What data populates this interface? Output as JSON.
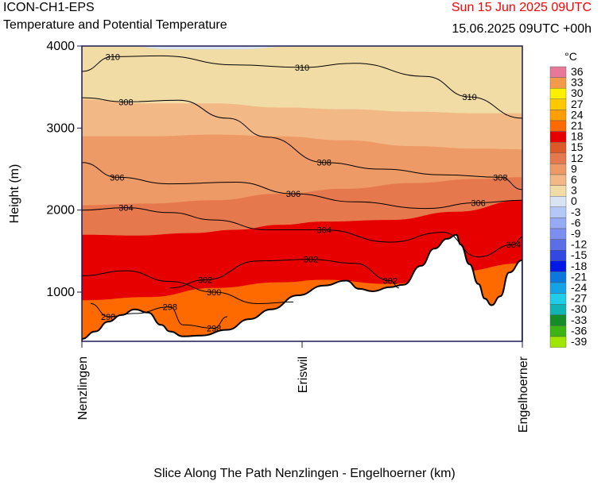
{
  "header": {
    "model": "ICON-CH1-EPS",
    "title": "Temperature and Potential Temperature",
    "valid_time": "Sun 15 Jun 2025 09UTC",
    "run_info": "15.06.2025 09UTC +00h"
  },
  "chart_data": {
    "type": "vertical cross-section (filled contour)",
    "xlabel": "Slice Along The Path Nenzlingen - Engelhoerner (km)",
    "ylabel": "Height (m)",
    "ylim": [
      400,
      4000
    ],
    "y_ticks": [
      1000,
      2000,
      3000,
      4000
    ],
    "x_locations": [
      {
        "name": "Nenzlingen",
        "fraction": 0.0
      },
      {
        "name": "Eriswil",
        "fraction": 0.5
      },
      {
        "name": "Engelhoerner",
        "fraction": 1.0
      }
    ],
    "colorbar": {
      "unit": "°C",
      "levels": [
        36,
        33,
        30,
        27,
        24,
        21,
        18,
        15,
        12,
        9,
        6,
        3,
        0,
        -3,
        -6,
        -9,
        -12,
        -15,
        -18,
        -21,
        -24,
        -27,
        -30,
        -33,
        -36,
        -39
      ],
      "colors": [
        "#e8789a",
        "#f39a4a",
        "#fff000",
        "#ffc800",
        "#ff9e00",
        "#ff6a00",
        "#e60000",
        "#dc5a28",
        "#e6784e",
        "#ee9a66",
        "#f2b886",
        "#f0dca4",
        "#d8e4f2",
        "#b4c8f8",
        "#96aaf6",
        "#7c8ef0",
        "#5c6ee6",
        "#3248e0",
        "#0018e6",
        "#0a78dc",
        "#14a4e6",
        "#20cce8",
        "#10b4b4",
        "#148c28",
        "#3cb414",
        "#a0e600"
      ]
    },
    "terrain_profile": [
      [
        0.0,
        430
      ],
      [
        0.03,
        520
      ],
      [
        0.06,
        640
      ],
      [
        0.09,
        720
      ],
      [
        0.12,
        790
      ],
      [
        0.15,
        750
      ],
      [
        0.18,
        600
      ],
      [
        0.2,
        520
      ],
      [
        0.23,
        460
      ],
      [
        0.27,
        470
      ],
      [
        0.33,
        540
      ],
      [
        0.38,
        670
      ],
      [
        0.43,
        790
      ],
      [
        0.49,
        960
      ],
      [
        0.55,
        1080
      ],
      [
        0.6,
        1140
      ],
      [
        0.63,
        1040
      ],
      [
        0.66,
        1010
      ],
      [
        0.7,
        1060
      ],
      [
        0.73,
        1090
      ],
      [
        0.77,
        1320
      ],
      [
        0.8,
        1530
      ],
      [
        0.83,
        1650
      ],
      [
        0.85,
        1700
      ],
      [
        0.86,
        1580
      ],
      [
        0.88,
        1340
      ],
      [
        0.9,
        1100
      ],
      [
        0.915,
        920
      ],
      [
        0.93,
        840
      ],
      [
        0.95,
        950
      ],
      [
        0.97,
        1240
      ],
      [
        1.0,
        1390
      ]
    ],
    "potential_temperature_contours": [
      {
        "label": "298",
        "points": [
          [
            0.02,
            860
          ],
          [
            0.06,
            700
          ],
          [
            0.12,
            740
          ],
          [
            0.2,
            820
          ],
          [
            0.23,
            600
          ],
          [
            0.3,
            560
          ],
          [
            0.33,
            700
          ]
        ]
      },
      {
        "label": "300",
        "points": [
          [
            0.0,
            1200
          ],
          [
            0.1,
            1260
          ],
          [
            0.2,
            1130
          ],
          [
            0.3,
            1000
          ],
          [
            0.4,
            860
          ],
          [
            0.48,
            880
          ]
        ]
      },
      {
        "label": "302",
        "points": [
          [
            0.2,
            1050
          ],
          [
            0.28,
            1150
          ],
          [
            0.4,
            1380
          ],
          [
            0.52,
            1400
          ],
          [
            0.62,
            1350
          ],
          [
            0.7,
            1140
          ],
          [
            0.72,
            1050
          ]
        ]
      },
      {
        "label": "304",
        "points": [
          [
            0.0,
            2000
          ],
          [
            0.1,
            2030
          ],
          [
            0.2,
            1970
          ],
          [
            0.3,
            1880
          ],
          [
            0.42,
            1760
          ],
          [
            0.55,
            1760
          ],
          [
            0.7,
            1610
          ],
          [
            0.82,
            1730
          ],
          [
            0.9,
            1430
          ],
          [
            0.98,
            1580
          ],
          [
            1.0,
            1670
          ]
        ]
      },
      {
        "label": "306",
        "points": [
          [
            0.0,
            2580
          ],
          [
            0.08,
            2400
          ],
          [
            0.2,
            2320
          ],
          [
            0.35,
            2340
          ],
          [
            0.48,
            2200
          ],
          [
            0.62,
            2100
          ],
          [
            0.78,
            2020
          ],
          [
            0.9,
            2090
          ],
          [
            1.0,
            2120
          ]
        ]
      },
      {
        "label": "308",
        "points": [
          [
            0.0,
            3370
          ],
          [
            0.1,
            3320
          ],
          [
            0.22,
            3340
          ],
          [
            0.33,
            3120
          ],
          [
            0.42,
            2890
          ],
          [
            0.55,
            2580
          ],
          [
            0.68,
            2500
          ],
          [
            0.82,
            2430
          ],
          [
            0.95,
            2400
          ],
          [
            1.0,
            2250
          ]
        ]
      },
      {
        "label": "310",
        "points": [
          [
            0.0,
            3690
          ],
          [
            0.07,
            3870
          ],
          [
            0.18,
            3880
          ],
          [
            0.35,
            3770
          ],
          [
            0.5,
            3740
          ],
          [
            0.62,
            3790
          ],
          [
            0.78,
            3630
          ],
          [
            0.88,
            3380
          ],
          [
            1.0,
            3120
          ]
        ]
      }
    ]
  }
}
